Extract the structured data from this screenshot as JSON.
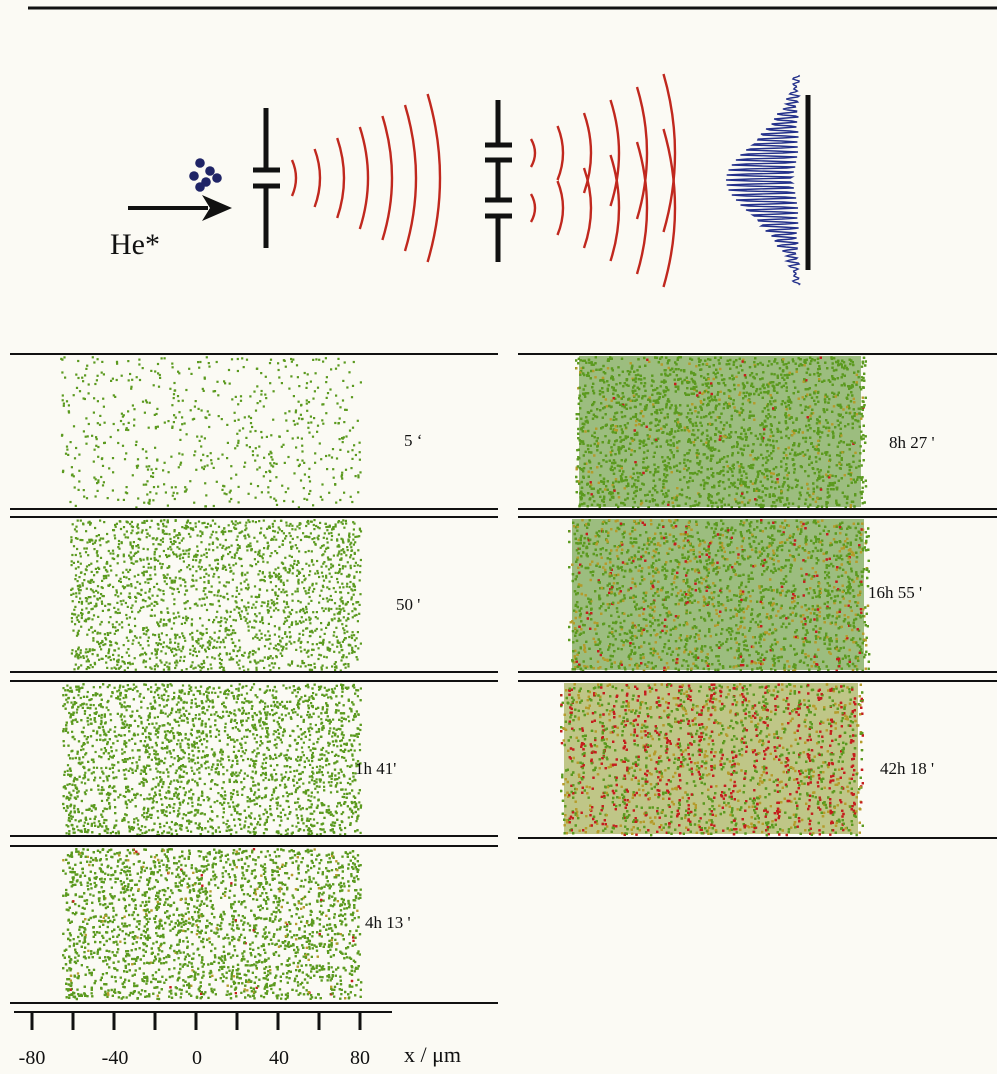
{
  "source_label": "He*",
  "panels_left": [
    {
      "time": "5 ‘",
      "density": 0.06,
      "fringe": 0.0,
      "red": 0.0,
      "yellow": 0.0
    },
    {
      "time": "50 '",
      "density": 0.22,
      "fringe": 0.15,
      "red": 0.0,
      "yellow": 0.0
    },
    {
      "time": "1h 41'",
      "density": 0.42,
      "fringe": 0.35,
      "red": 0.0,
      "yellow": 0.0
    },
    {
      "time": "4h 13 '",
      "density": 0.65,
      "fringe": 0.5,
      "red": 0.01,
      "yellow": 0.05
    }
  ],
  "panels_right": [
    {
      "time": "8h 27 '",
      "density": 0.92,
      "fringe": 0.55,
      "red": 0.02,
      "yellow": 0.1
    },
    {
      "time": "16h 55 '",
      "density": 1.0,
      "fringe": 0.6,
      "red": 0.08,
      "yellow": 0.3
    },
    {
      "time": "42h 18 '",
      "density": 1.0,
      "fringe": 0.75,
      "red": 0.35,
      "yellow": 0.55
    }
  ],
  "axis": {
    "title": "x / μm",
    "tick_labels": [
      "-80",
      "-40",
      "0",
      "40",
      "80"
    ]
  },
  "colors": {
    "atom": "#1f2466",
    "wave": "#c0281e",
    "pattern": "#23308a",
    "dot_green": "#5b9a1f",
    "dot_yellow": "#b59b2a",
    "dot_red": "#c51d1d"
  }
}
